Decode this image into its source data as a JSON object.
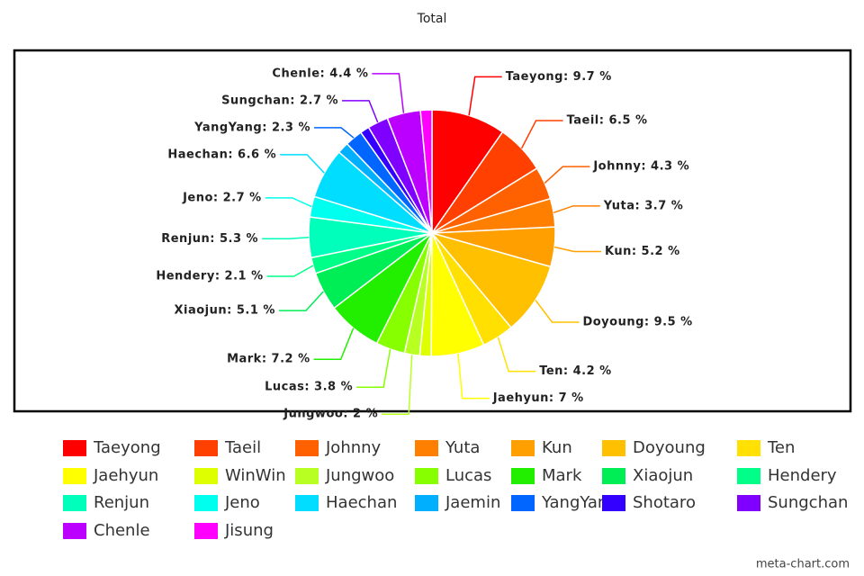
{
  "chart_data": {
    "type": "pie",
    "title": "Total",
    "credit": "meta-chart.com",
    "categories": [
      "Taeyong",
      "Taeil",
      "Johnny",
      "Yuta",
      "Kun",
      "Doyoung",
      "Ten",
      "Jaehyun",
      "WinWin",
      "Jungwoo",
      "Lucas",
      "Mark",
      "Xiaojun",
      "Hendery",
      "Renjun",
      "Jeno",
      "Haechan",
      "Jaemin",
      "YangYang",
      "Shotaro",
      "Sungchan",
      "Chenle",
      "Jisung"
    ],
    "values": [
      9.7,
      6.5,
      4.3,
      3.7,
      5.2,
      9.5,
      4.2,
      7,
      1.5,
      2,
      3.8,
      7.2,
      5.1,
      2.1,
      5.3,
      2.7,
      6.6,
      1.5,
      2.3,
      1.2,
      2.7,
      4.4,
      1.5
    ],
    "value_labels": [
      "Taeyong: 9.7 %",
      "Taeil: 6.5 %",
      "Johnny: 4.3 %",
      "Yuta: 3.7 %",
      "Kun: 5.2 %",
      "Doyoung: 9.5 %",
      "Ten: 4.2 %",
      "Jaehyun: 7 %",
      null,
      "Jungwoo: 2 %",
      "Lucas: 3.8 %",
      "Mark: 7.2 %",
      "Xiaojun: 5.1 %",
      "Hendery: 2.1 %",
      "Renjun: 5.3 %",
      "Jeno: 2.7 %",
      "Haechan: 6.6 %",
      null,
      "YangYang: 2.3 %",
      null,
      "Sungchan: 2.7 %",
      "Chenle: 4.4 %",
      null
    ],
    "colors": [
      "#ff0000",
      "#ff4000",
      "#ff6000",
      "#ff8000",
      "#ffa000",
      "#ffc000",
      "#ffe000",
      "#ffff00",
      "#ddff00",
      "#b8ff22",
      "#88ff00",
      "#22ee00",
      "#00ee55",
      "#00ff88",
      "#00ffbb",
      "#00ffee",
      "#00ddff",
      "#00b0ff",
      "#0066ff",
      "#3300ff",
      "#8000ff",
      "#bb00ff",
      "#ff00ff"
    ],
    "legend": "bottom"
  }
}
